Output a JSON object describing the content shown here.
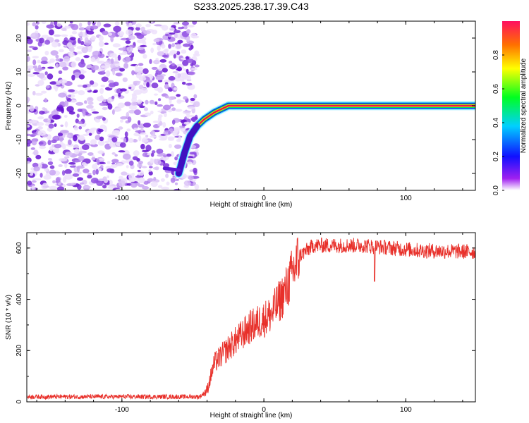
{
  "title": "S233.2025.238.17.39.C43",
  "colors": {
    "snr_line": "#e8302a",
    "axis": "#000000",
    "track_center": "#e6194b"
  },
  "chart_data": [
    {
      "type": "heatmap",
      "title": "S233.2025.238.17.39.C43",
      "xlabel": "Height of straight line (km)",
      "ylabel": "Frequency (Hz)",
      "xlim": [
        -167,
        149
      ],
      "ylim": [
        -25,
        25
      ],
      "xticks": [
        -100,
        0,
        100
      ],
      "yticks": [
        -20,
        -10,
        0,
        10,
        20
      ],
      "noise_region_x": [
        -167,
        -52
      ],
      "track": [
        {
          "x": -60,
          "y": -20
        },
        {
          "x": -56,
          "y": -14
        },
        {
          "x": -52,
          "y": -9
        },
        {
          "x": -47,
          "y": -6
        },
        {
          "x": -42,
          "y": -4
        },
        {
          "x": -35,
          "y": -2
        },
        {
          "x": -30,
          "y": -1
        },
        {
          "x": -25,
          "y": 0
        },
        {
          "x": 0,
          "y": 0
        },
        {
          "x": 50,
          "y": 0
        },
        {
          "x": 100,
          "y": 0
        },
        {
          "x": 149,
          "y": 0
        }
      ],
      "colorbar": {
        "label": "Normalized spectral amplitude",
        "range": [
          0.0,
          1.0
        ],
        "ticks": [
          "0.0",
          "0.2",
          "0.4",
          "0.6",
          "0.8"
        ]
      }
    },
    {
      "type": "line",
      "xlabel": "Height of straight line (km)",
      "ylabel": "SNR (10 * v/v)",
      "xlim": [
        -167,
        149
      ],
      "ylim": [
        0,
        660
      ],
      "xticks": [
        -100,
        0,
        100
      ],
      "yticks": [
        0,
        200,
        400,
        600
      ],
      "envelope": [
        {
          "x": -167,
          "y": 20
        },
        {
          "x": -45,
          "y": 20
        },
        {
          "x": -40,
          "y": 45
        },
        {
          "x": -35,
          "y": 150
        },
        {
          "x": -25,
          "y": 210
        },
        {
          "x": -10,
          "y": 290
        },
        {
          "x": 5,
          "y": 340
        },
        {
          "x": 15,
          "y": 430
        },
        {
          "x": 25,
          "y": 570
        },
        {
          "x": 35,
          "y": 610
        },
        {
          "x": 70,
          "y": 610
        },
        {
          "x": 110,
          "y": 590
        },
        {
          "x": 149,
          "y": 585
        }
      ],
      "dip": {
        "x": 78,
        "y": 470
      }
    }
  ]
}
